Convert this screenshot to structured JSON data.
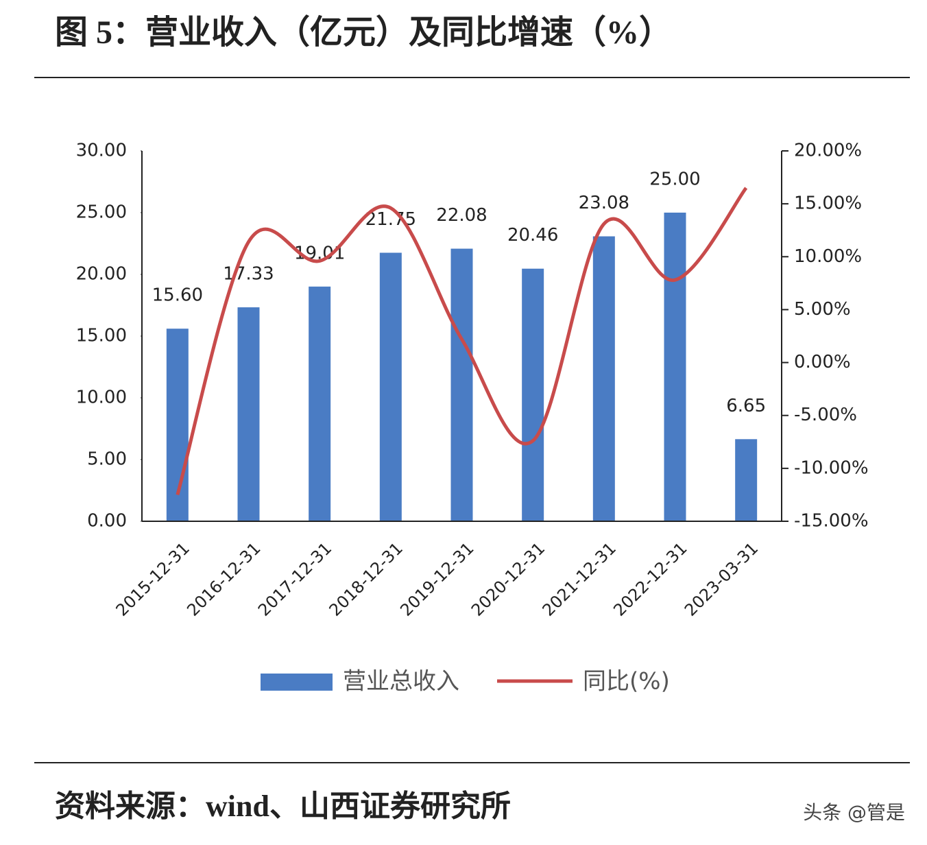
{
  "title": "图 5：营业收入（亿元）及同比增速（%）",
  "source": "资料来源：wind、山西证券研究所",
  "watermark": "头条 @管是",
  "chart_data": {
    "type": "bar",
    "categories": [
      "2015-12-31",
      "2016-12-31",
      "2017-12-31",
      "2018-12-31",
      "2019-12-31",
      "2020-12-31",
      "2021-12-31",
      "2022-12-31",
      "2023-03-31"
    ],
    "series": [
      {
        "name": "营业总收入",
        "color": "#4a7cc4",
        "type": "bar",
        "values": [
          15.6,
          17.33,
          19.01,
          21.75,
          22.08,
          20.46,
          23.08,
          25.0,
          6.65
        ],
        "value_labels": [
          "15.60",
          "17.33",
          "19.01",
          "21.75",
          "22.08",
          "20.46",
          "23.08",
          "25.00",
          "6.65"
        ]
      },
      {
        "name": "同比(%)",
        "color": "#c84b4b",
        "type": "line",
        "axis": "y2",
        "values": [
          -12.5,
          11.4,
          9.6,
          14.6,
          2.2,
          -7.4,
          13.1,
          7.8,
          16.5
        ]
      }
    ],
    "ylim": [
      0,
      30
    ],
    "yticks": [
      {
        "value": 0,
        "label": "0.00"
      },
      {
        "value": 5,
        "label": "5.00"
      },
      {
        "value": 10,
        "label": "10.00"
      },
      {
        "value": 15,
        "label": "15.00"
      },
      {
        "value": 20,
        "label": "20.00"
      },
      {
        "value": 25,
        "label": "25.00"
      },
      {
        "value": 30,
        "label": "30.00"
      }
    ],
    "y2lim": [
      -15,
      20
    ],
    "y2ticks": [
      {
        "value": -15,
        "label": "-15.00%"
      },
      {
        "value": -10,
        "label": "-10.00%"
      },
      {
        "value": -5,
        "label": "-5.00%"
      },
      {
        "value": 0,
        "label": "0.00%"
      },
      {
        "value": 5,
        "label": "5.00%"
      },
      {
        "value": 10,
        "label": "10.00%"
      },
      {
        "value": 15,
        "label": "15.00%"
      },
      {
        "value": 20,
        "label": "20.00%"
      }
    ],
    "legend": "bottom"
  }
}
